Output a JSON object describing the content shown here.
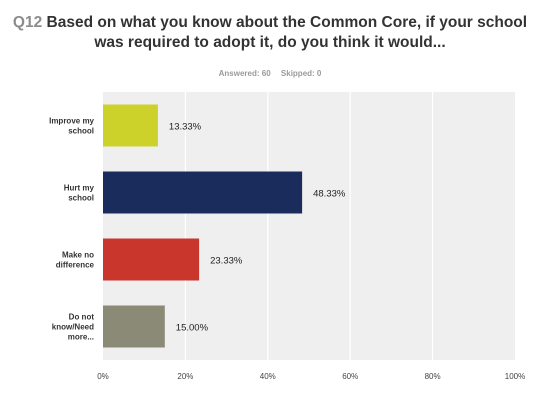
{
  "header": {
    "question_number": "Q12",
    "question_text": "Based on what you know about the Common Core, if your school was required to adopt it, do you think it would...",
    "answered": "Answered: 60",
    "skipped": "Skipped: 0"
  },
  "chart_data": {
    "type": "bar",
    "orientation": "horizontal",
    "title": "Based on what you know about the Common Core, if your school was required to adopt it, do you think it would...",
    "categories": [
      [
        "Improve my",
        "school"
      ],
      [
        "Hurt my",
        "school"
      ],
      [
        "Make no",
        "difference"
      ],
      [
        "Do not",
        "know/Need",
        "more..."
      ]
    ],
    "values": [
      13.33,
      48.33,
      23.33,
      15.0
    ],
    "value_labels": [
      "13.33%",
      "48.33%",
      "23.33%",
      "15.00%"
    ],
    "colors": [
      "#cdd22b",
      "#1a2c5b",
      "#c9372c",
      "#8a8a76"
    ],
    "xlim": [
      0,
      100
    ],
    "xticks": [
      0,
      20,
      40,
      60,
      80,
      100
    ],
    "xtick_labels": [
      "0%",
      "20%",
      "40%",
      "60%",
      "80%",
      "100%"
    ],
    "grid": true,
    "legend": "none",
    "plot_background": "#efefef",
    "grid_color": "#ffffff"
  }
}
